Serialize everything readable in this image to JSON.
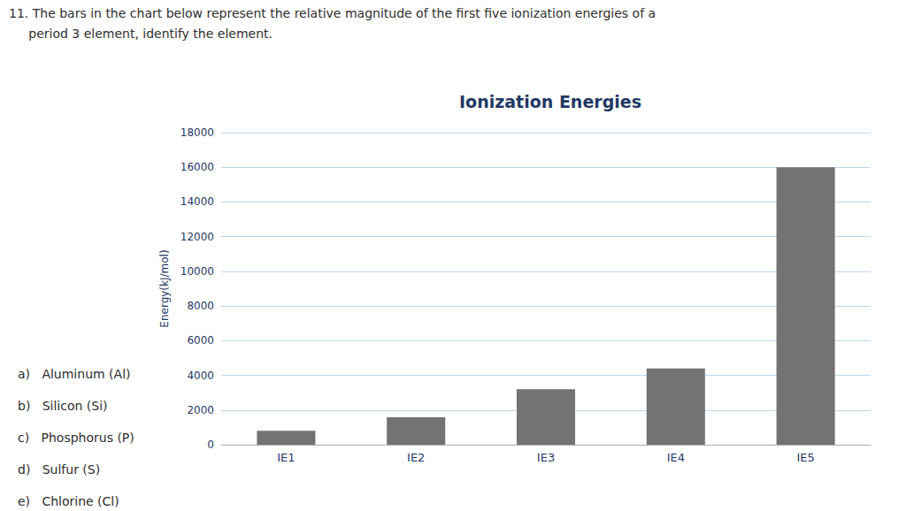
{
  "chart_data": {
    "type": "bar",
    "title": "Ionization Energies",
    "ylabel": "Energy(kJ/mol)",
    "categories": [
      "IE1",
      "IE2",
      "IE3",
      "IE4",
      "IE5"
    ],
    "values": [
      800,
      1575,
      3200,
      4400,
      16000
    ],
    "color": "#737373",
    "ylim": [
      0,
      18000
    ],
    "yticks": [
      0,
      2000,
      4000,
      6000,
      8000,
      10000,
      12000,
      14000,
      16000,
      18000
    ],
    "grid": true,
    "annotations": [
      "11. The bars in the chart below represent the relative magnitude of the first five ionization energies of a",
      "     period 3 element, identify the element.",
      "a)   Aluminum (Al)",
      "b)   Silicon (Si)",
      "c)   Phosphorus (P)",
      "d)   Sulfur (S)",
      "e)   Chlorine (Cl)"
    ]
  }
}
